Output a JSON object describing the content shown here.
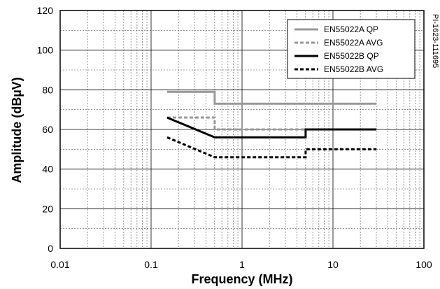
{
  "chart_data": {
    "type": "line",
    "xlabel": "Frequency (MHz)",
    "ylabel": "Amplitude (dBµV)",
    "side_label": "PI-1623-111695",
    "xscale": "log",
    "xlim": [
      0.01,
      100
    ],
    "ylim": [
      0,
      120
    ],
    "x_tick_labels": [
      {
        "value": 0.01,
        "label": "0.01"
      },
      {
        "value": 0.1,
        "label": "0.1"
      },
      {
        "value": 1,
        "label": "1"
      },
      {
        "value": 10,
        "label": "10"
      },
      {
        "value": 100,
        "label": "100"
      }
    ],
    "y_tick_labels": [
      {
        "value": 0,
        "label": "0"
      },
      {
        "value": 20,
        "label": "20"
      },
      {
        "value": 40,
        "label": "40"
      },
      {
        "value": 60,
        "label": "60"
      },
      {
        "value": 80,
        "label": "80"
      },
      {
        "value": 100,
        "label": "100"
      },
      {
        "value": 120,
        "label": "120"
      }
    ],
    "grid": true,
    "legend_position": "top-right",
    "series": [
      {
        "name": "EN55022A QP",
        "color": "#999999",
        "style": "solid",
        "points": [
          [
            0.15,
            79
          ],
          [
            0.5,
            79
          ],
          [
            0.5,
            73
          ],
          [
            30,
            73
          ]
        ]
      },
      {
        "name": "EN55022A AVG",
        "color": "#999999",
        "style": "dashed",
        "points": [
          [
            0.15,
            66
          ],
          [
            0.5,
            66
          ],
          [
            0.5,
            60
          ],
          [
            30,
            60
          ]
        ]
      },
      {
        "name": "EN55022B QP",
        "color": "#000000",
        "style": "solid",
        "points": [
          [
            0.15,
            66
          ],
          [
            0.5,
            56
          ],
          [
            5,
            56
          ],
          [
            5,
            60
          ],
          [
            30,
            60
          ]
        ]
      },
      {
        "name": "EN55022B AVG",
        "color": "#000000",
        "style": "dashed",
        "points": [
          [
            0.15,
            56
          ],
          [
            0.5,
            46
          ],
          [
            5,
            46
          ],
          [
            5,
            50
          ],
          [
            30,
            50
          ]
        ]
      }
    ]
  }
}
